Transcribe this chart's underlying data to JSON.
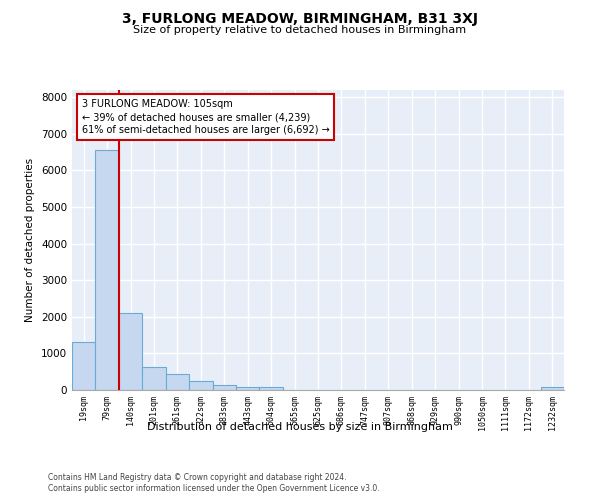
{
  "title": "3, FURLONG MEADOW, BIRMINGHAM, B31 3XJ",
  "subtitle": "Size of property relative to detached houses in Birmingham",
  "xlabel": "Distribution of detached houses by size in Birmingham",
  "ylabel": "Number of detached properties",
  "bar_color": "#c5d8f0",
  "bar_edge_color": "#6aaad4",
  "background_color": "#e8eef8",
  "grid_color": "#ffffff",
  "categories": [
    "19sqm",
    "79sqm",
    "140sqm",
    "201sqm",
    "261sqm",
    "322sqm",
    "383sqm",
    "443sqm",
    "504sqm",
    "565sqm",
    "625sqm",
    "686sqm",
    "747sqm",
    "807sqm",
    "868sqm",
    "929sqm",
    "990sqm",
    "1050sqm",
    "1111sqm",
    "1172sqm",
    "1232sqm"
  ],
  "values": [
    1300,
    6550,
    2100,
    620,
    450,
    250,
    130,
    80,
    80,
    0,
    0,
    0,
    0,
    0,
    0,
    0,
    0,
    0,
    0,
    0,
    80
  ],
  "ylim": [
    0,
    8200
  ],
  "yticks": [
    0,
    1000,
    2000,
    3000,
    4000,
    5000,
    6000,
    7000,
    8000
  ],
  "annotation_text": "3 FURLONG MEADOW: 105sqm\n← 39% of detached houses are smaller (4,239)\n61% of semi-detached houses are larger (6,692) →",
  "annotation_box_color": "#cc0000",
  "property_sqm": 105,
  "footnote1": "Contains HM Land Registry data © Crown copyright and database right 2024.",
  "footnote2": "Contains public sector information licensed under the Open Government Licence v3.0."
}
